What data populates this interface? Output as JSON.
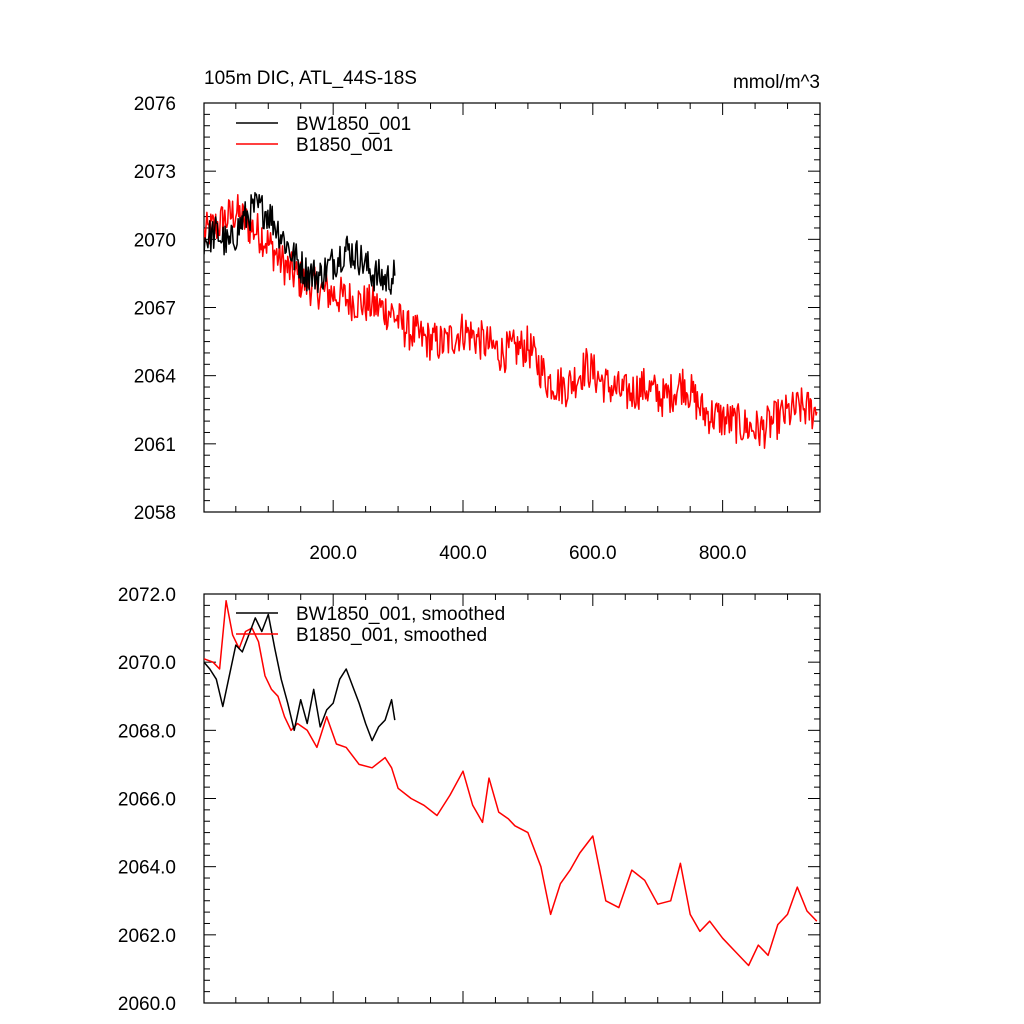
{
  "header": {
    "title": "105m DIC, ATL_44S-18S",
    "units": "mmol/m^3"
  },
  "colors": {
    "black": "#000000",
    "red": "#ff0000"
  },
  "chart_data": [
    {
      "type": "line",
      "title": "105m DIC, ATL_44S-18S",
      "units": "mmol/m^3",
      "xlim": [
        1,
        950
      ],
      "ylim": [
        2058,
        2076
      ],
      "xticks": [
        200,
        400,
        600,
        800
      ],
      "xtick_labels": [
        "200.0",
        "400.0",
        "600.0",
        "800.0"
      ],
      "yticks": [
        2058,
        2061,
        2064,
        2067,
        2070,
        2073,
        2076
      ],
      "ytick_labels": [
        "2058",
        "2061",
        "2064",
        "2067",
        "2070",
        "2073",
        "2076"
      ],
      "legend_position": "top-left",
      "series": [
        {
          "name": "BW1850_001",
          "color": "#000000",
          "noise": 0.8,
          "x": [
            1,
            20,
            40,
            60,
            80,
            100,
            120,
            140,
            160,
            180,
            200,
            220,
            240,
            260,
            280,
            295
          ],
          "values": [
            2070.0,
            2070.3,
            2069.7,
            2070.8,
            2071.4,
            2071.2,
            2070.2,
            2069.2,
            2068.5,
            2068.4,
            2069.0,
            2069.6,
            2069.2,
            2068.5,
            2068.2,
            2068.4
          ]
        },
        {
          "name": "B1850_001",
          "color": "#ff0000",
          "noise": 0.9,
          "x": [
            1,
            30,
            50,
            70,
            90,
            110,
            130,
            150,
            170,
            200,
            230,
            260,
            290,
            310,
            340,
            370,
            400,
            430,
            460,
            500,
            530,
            560,
            590,
            620,
            650,
            680,
            710,
            740,
            770,
            800,
            830,
            860,
            890,
            920,
            945
          ],
          "values": [
            2070.2,
            2070.8,
            2071.2,
            2070.6,
            2070.2,
            2069.4,
            2068.7,
            2068.2,
            2067.9,
            2067.6,
            2067.3,
            2067.1,
            2066.8,
            2066.1,
            2065.6,
            2065.4,
            2066.0,
            2065.5,
            2065.0,
            2065.3,
            2063.8,
            2063.5,
            2064.4,
            2063.6,
            2063.2,
            2063.5,
            2063.0,
            2063.7,
            2062.4,
            2062.1,
            2061.8,
            2061.6,
            2062.2,
            2062.6,
            2062.4
          ]
        }
      ]
    },
    {
      "type": "line",
      "xlim": [
        1,
        950
      ],
      "ylim": [
        2060,
        2072
      ],
      "xticks": [
        200,
        400,
        600,
        800
      ],
      "yticks": [
        2060,
        2062,
        2064,
        2066,
        2068,
        2070,
        2072
      ],
      "ytick_labels": [
        "2060.0",
        "2062.0",
        "2064.0",
        "2066.0",
        "2068.0",
        "2070.0",
        "2072.0"
      ],
      "legend_position": "top-left",
      "series": [
        {
          "name": "BW1850_001, smoothed",
          "color": "#000000",
          "x": [
            1,
            10,
            20,
            30,
            40,
            50,
            60,
            70,
            80,
            90,
            100,
            110,
            120,
            130,
            140,
            150,
            160,
            170,
            180,
            190,
            200,
            210,
            220,
            230,
            240,
            250,
            260,
            270,
            280,
            290,
            295
          ],
          "values": [
            2070.0,
            2069.8,
            2069.5,
            2068.7,
            2069.6,
            2070.5,
            2070.3,
            2070.8,
            2071.3,
            2070.9,
            2071.4,
            2070.4,
            2069.5,
            2068.8,
            2068.0,
            2068.9,
            2068.2,
            2069.2,
            2068.1,
            2068.6,
            2068.8,
            2069.5,
            2069.8,
            2069.3,
            2068.8,
            2068.2,
            2067.7,
            2068.1,
            2068.3,
            2068.9,
            2068.3
          ]
        },
        {
          "name": "B1850_001, smoothed",
          "color": "#ff0000",
          "x": [
            1,
            15,
            25,
            35,
            45,
            55,
            65,
            75,
            85,
            95,
            105,
            115,
            125,
            135,
            145,
            160,
            175,
            190,
            205,
            220,
            240,
            260,
            280,
            290,
            300,
            320,
            340,
            360,
            380,
            400,
            415,
            430,
            440,
            455,
            470,
            480,
            500,
            520,
            535,
            550,
            565,
            580,
            600,
            620,
            640,
            660,
            680,
            700,
            720,
            735,
            750,
            765,
            780,
            800,
            820,
            840,
            855,
            870,
            885,
            900,
            915,
            930,
            945
          ],
          "values": [
            2070.1,
            2070.0,
            2069.8,
            2071.8,
            2070.8,
            2070.4,
            2070.9,
            2071.0,
            2070.6,
            2069.6,
            2069.2,
            2069.0,
            2068.4,
            2068.0,
            2068.2,
            2068.0,
            2067.5,
            2068.4,
            2067.6,
            2067.5,
            2067.0,
            2066.9,
            2067.2,
            2066.9,
            2066.3,
            2066.0,
            2065.8,
            2065.5,
            2066.1,
            2066.8,
            2065.8,
            2065.3,
            2066.6,
            2065.6,
            2065.4,
            2065.2,
            2065.0,
            2064.0,
            2062.6,
            2063.5,
            2063.9,
            2064.4,
            2064.9,
            2063.0,
            2062.8,
            2063.9,
            2063.6,
            2062.9,
            2063.0,
            2064.1,
            2062.6,
            2062.1,
            2062.4,
            2061.9,
            2061.5,
            2061.1,
            2061.7,
            2061.4,
            2062.3,
            2062.6,
            2063.4,
            2062.7,
            2062.4
          ]
        }
      ]
    }
  ]
}
